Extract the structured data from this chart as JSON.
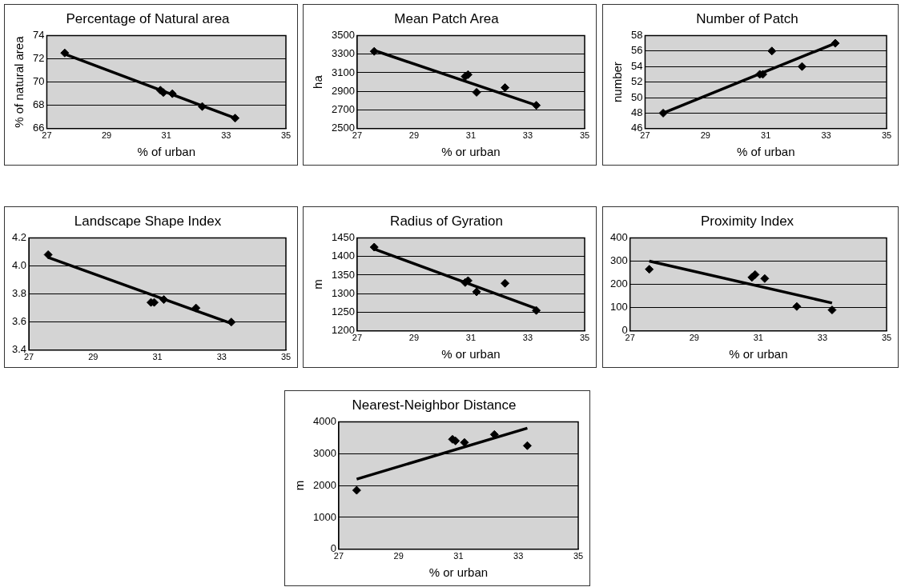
{
  "chart_data": [
    {
      "type": "scatter",
      "title": "Percentage of Natural area",
      "xlabel": "% of urban",
      "ylabel": "% of natural area",
      "xlim": [
        27,
        35
      ],
      "xticks": [
        27,
        29,
        31,
        33,
        35
      ],
      "ylim": [
        66,
        74
      ],
      "yticks": [
        66,
        68,
        70,
        72,
        74
      ],
      "grid": "y",
      "series": [
        {
          "color": "#000000",
          "marker": "diamond",
          "x": [
            27.6,
            30.8,
            30.9,
            31.2,
            32.2,
            33.3
          ],
          "values": [
            72.5,
            69.3,
            69.1,
            69.0,
            67.9,
            66.9
          ]
        },
        {
          "type": "line",
          "marker": "none",
          "color": "#000000",
          "x": [
            27.6,
            33.3
          ],
          "values": [
            72.4,
            66.9
          ]
        }
      ]
    },
    {
      "type": "scatter",
      "title": "Mean Patch Area",
      "xlabel": "% or urban",
      "ylabel": "ha",
      "xlim": [
        27,
        35
      ],
      "xticks": [
        27,
        29,
        31,
        33,
        35
      ],
      "ylim": [
        2500,
        3500
      ],
      "yticks": [
        2500,
        2700,
        2900,
        3100,
        3300,
        3500
      ],
      "grid": "y",
      "series": [
        {
          "color": "#000000",
          "marker": "diamond",
          "x": [
            27.6,
            30.8,
            30.9,
            31.2,
            32.2,
            33.3
          ],
          "values": [
            3330,
            3060,
            3080,
            2890,
            2940,
            2750
          ]
        },
        {
          "type": "line",
          "marker": "none",
          "color": "#000000",
          "x": [
            27.6,
            33.3
          ],
          "values": [
            3340,
            2750
          ]
        }
      ]
    },
    {
      "type": "scatter",
      "title": "Number of Patch",
      "xlabel": "% of urban",
      "ylabel": "number",
      "xlim": [
        27,
        35
      ],
      "xticks": [
        27,
        29,
        31,
        33,
        35
      ],
      "ylim": [
        46,
        58
      ],
      "yticks": [
        46,
        48,
        50,
        52,
        54,
        56,
        58
      ],
      "grid": "y",
      "series": [
        {
          "color": "#000000",
          "marker": "diamond",
          "x": [
            27.6,
            30.8,
            30.9,
            31.2,
            32.2,
            33.3
          ],
          "values": [
            48,
            53,
            53,
            56,
            54,
            57
          ]
        },
        {
          "type": "line",
          "marker": "none",
          "color": "#000000",
          "x": [
            27.6,
            33.3
          ],
          "values": [
            48,
            57
          ]
        }
      ]
    },
    {
      "type": "scatter",
      "title": "Landscape Shape Index",
      "xlim": [
        27,
        35
      ],
      "xticks": [
        27,
        29,
        31,
        33,
        35
      ],
      "ylim": [
        3.4,
        4.2
      ],
      "yticks": [
        {
          "value": 3.4,
          "label": "3.4"
        },
        {
          "value": 3.6,
          "label": "3.6"
        },
        {
          "value": 3.8,
          "label": "3.8"
        },
        {
          "value": 4,
          "label": "4.0"
        },
        {
          "value": 4.2,
          "label": "4.2"
        }
      ],
      "grid": "y",
      "series": [
        {
          "color": "#000000",
          "marker": "diamond",
          "x": [
            27.6,
            30.8,
            30.9,
            31.2,
            32.2,
            33.3
          ],
          "values": [
            4.08,
            3.74,
            3.74,
            3.76,
            3.7,
            3.6
          ]
        },
        {
          "type": "line",
          "marker": "none",
          "color": "#000000",
          "x": [
            27.6,
            33.3
          ],
          "values": [
            4.06,
            3.59
          ]
        }
      ]
    },
    {
      "type": "scatter",
      "title": "Radius of Gyration",
      "xlabel": "% or urban",
      "ylabel": "m",
      "xlim": [
        27,
        35
      ],
      "xticks": [
        27,
        29,
        31,
        33,
        35
      ],
      "ylim": [
        1200,
        1450
      ],
      "yticks": [
        1200,
        1250,
        1300,
        1350,
        1400,
        1450
      ],
      "grid": "y",
      "series": [
        {
          "color": "#000000",
          "marker": "diamond",
          "x": [
            27.6,
            30.8,
            30.9,
            31.2,
            32.2,
            33.3
          ],
          "values": [
            1425,
            1330,
            1335,
            1305,
            1328,
            1255
          ]
        },
        {
          "type": "line",
          "marker": "none",
          "color": "#000000",
          "x": [
            27.6,
            33.3
          ],
          "values": [
            1420,
            1260
          ]
        }
      ]
    },
    {
      "type": "scatter",
      "title": "Proximity Index",
      "xlabel": "% or urban",
      "xlim": [
        27,
        35
      ],
      "xticks": [
        27,
        29,
        31,
        33,
        35
      ],
      "ylim": [
        0,
        400
      ],
      "yticks": [
        0,
        100,
        200,
        300,
        400
      ],
      "grid": "y",
      "series": [
        {
          "color": "#000000",
          "marker": "diamond",
          "x": [
            27.6,
            30.8,
            30.9,
            31.2,
            32.2,
            33.3
          ],
          "values": [
            265,
            230,
            242,
            225,
            105,
            90
          ]
        },
        {
          "type": "line",
          "marker": "none",
          "color": "#000000",
          "x": [
            27.6,
            33.3
          ],
          "values": [
            300,
            120
          ]
        }
      ]
    },
    {
      "type": "scatter",
      "title": "Nearest-Neighbor Distance",
      "xlabel": "% or urban",
      "ylabel": "m",
      "xlim": [
        27,
        35
      ],
      "xticks": [
        27,
        29,
        31,
        33,
        35
      ],
      "ylim": [
        0,
        4000
      ],
      "yticks": [
        0,
        1000,
        2000,
        3000,
        4000
      ],
      "grid": "y",
      "series": [
        {
          "color": "#000000",
          "marker": "diamond",
          "x": [
            27.6,
            30.8,
            30.9,
            31.2,
            32.2,
            33.3
          ],
          "values": [
            1850,
            3450,
            3400,
            3350,
            3600,
            3250
          ]
        },
        {
          "type": "line",
          "marker": "none",
          "color": "#000000",
          "x": [
            27.6,
            33.3
          ],
          "values": [
            2200,
            3800
          ]
        }
      ]
    }
  ]
}
